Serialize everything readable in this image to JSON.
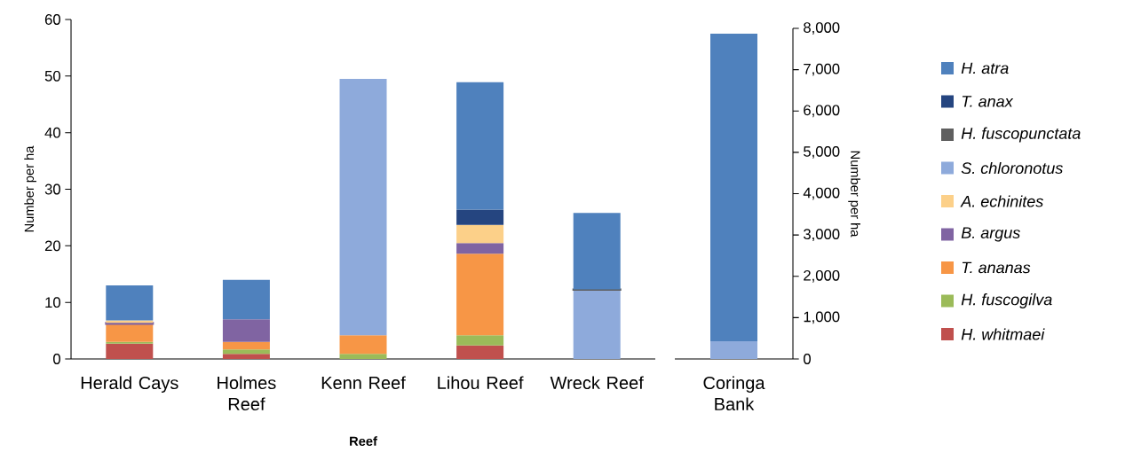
{
  "chart_data": [
    {
      "type": "bar",
      "stacked": true,
      "xlabel": "Reef",
      "ylabel": "Number per ha",
      "legend": "right",
      "categories": [
        "Herald Cays",
        "Holmes Reef",
        "Kenn Reef",
        "Lihou Reef",
        "Wreck Reef"
      ],
      "ylim": [
        0,
        60
      ],
      "yticks": [
        0,
        10,
        20,
        30,
        40,
        50,
        60
      ],
      "series": [
        {
          "name": "H. whitmaei",
          "color": "#c0504d",
          "values": [
            2.7,
            0.9,
            null,
            2.4,
            null
          ]
        },
        {
          "name": "H. fuscogilva",
          "color": "#9bbb59",
          "values": [
            0.3,
            0.8,
            0.9,
            1.8,
            null
          ]
        },
        {
          "name": "T. ananas",
          "color": "#f79646",
          "values": [
            3.2,
            1.3,
            3.3,
            14.4,
            null
          ]
        },
        {
          "name": "B. argus",
          "color": "#8064a2",
          "values": [
            0.2,
            4.0,
            null,
            1.9,
            null
          ]
        },
        {
          "name": "A. echinites",
          "color": "#fcd089",
          "values": [
            0.4,
            null,
            null,
            3.2,
            null
          ]
        },
        {
          "name": "S. chloronotus",
          "color": "#8eaadb",
          "values": [
            null,
            null,
            45.3,
            null,
            12.2
          ]
        },
        {
          "name": "H. fuscopunctata",
          "color": "#5f5f5f",
          "values": [
            null,
            null,
            null,
            null,
            0.1
          ]
        },
        {
          "name": "T. anax",
          "color": "#254580",
          "values": [
            null,
            null,
            null,
            2.7,
            null
          ]
        },
        {
          "name": "H. atra",
          "color": "#4f81bd",
          "values": [
            6.2,
            7.0,
            null,
            22.5,
            13.5
          ]
        }
      ]
    },
    {
      "type": "bar",
      "stacked": true,
      "ylabel": "Number per ha",
      "categories": [
        "Coringa Bank"
      ],
      "ylim": [
        0,
        8000
      ],
      "yticks": [
        0,
        {
          "value": 1000,
          "label": "1,000"
        },
        {
          "value": 2000,
          "label": "2,000"
        },
        {
          "value": 3000,
          "label": "3,000"
        },
        {
          "value": 4000,
          "label": "4,000"
        },
        {
          "value": 5000,
          "label": "5,000"
        },
        {
          "value": 6000,
          "label": "6,000"
        },
        {
          "value": 7000,
          "label": "7,000"
        },
        {
          "value": 8000,
          "label": "8,000"
        }
      ],
      "series": [
        {
          "color": "#8eaadb",
          "values": [
            430
          ]
        },
        {
          "color": "#4f81bd",
          "values": [
            7440
          ]
        }
      ]
    }
  ]
}
